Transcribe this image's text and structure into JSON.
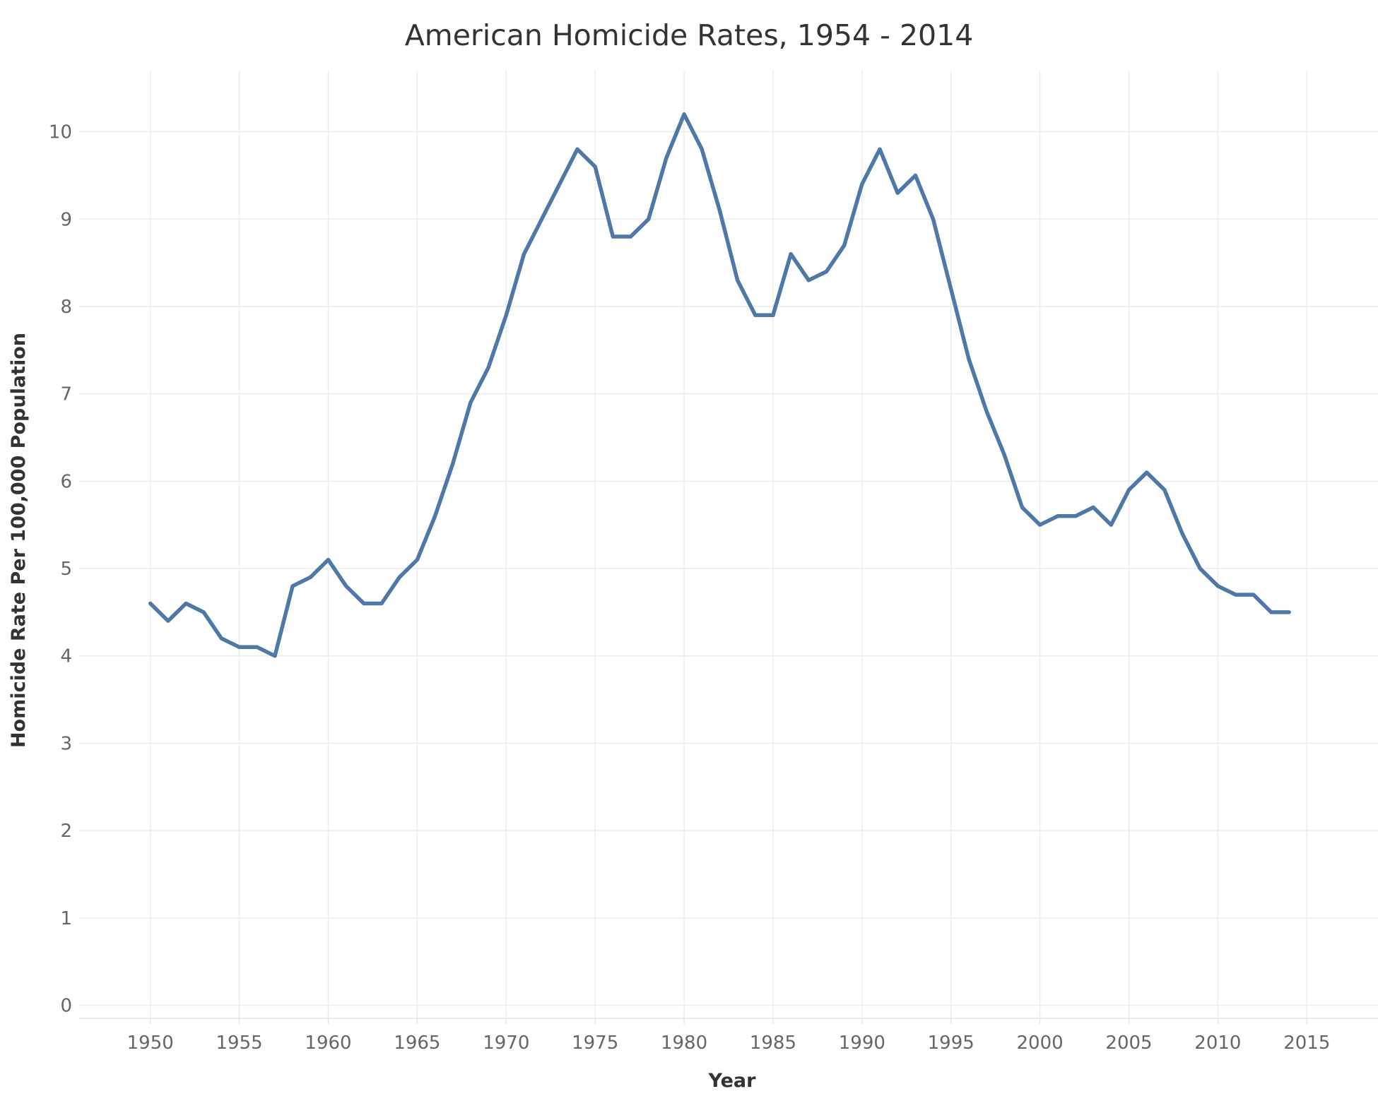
{
  "chart_data": {
    "type": "line",
    "title": "American Homicide Rates, 1954 - 2014",
    "xlabel": "Year",
    "ylabel": "Homicide Rate Per 100,000 Population",
    "xlim": [
      1946,
      2019
    ],
    "ylim": [
      -0.15,
      10.7
    ],
    "xticks": [
      1950,
      1955,
      1960,
      1965,
      1970,
      1975,
      1980,
      1985,
      1990,
      1995,
      2000,
      2005,
      2010,
      2015
    ],
    "yticks": [
      0,
      1,
      2,
      3,
      4,
      5,
      6,
      7,
      8,
      9,
      10
    ],
    "grid": true,
    "line_color": "#4e79a7",
    "series": [
      {
        "x": [
          1950,
          1951,
          1952,
          1953,
          1954,
          1955,
          1956,
          1957,
          1958,
          1959,
          1960,
          1961,
          1962,
          1963,
          1964,
          1965,
          1966,
          1967,
          1968,
          1969,
          1970,
          1971,
          1972,
          1973,
          1974,
          1975,
          1976,
          1977,
          1978,
          1979,
          1980,
          1981,
          1982,
          1983,
          1984,
          1985,
          1986,
          1987,
          1988,
          1989,
          1990,
          1991,
          1992,
          1993,
          1994,
          1995,
          1996,
          1997,
          1998,
          1999,
          2000,
          2001,
          2002,
          2003,
          2004,
          2005,
          2006,
          2007,
          2008,
          2009,
          2010,
          2011,
          2012,
          2013,
          2014
        ],
        "y": [
          4.6,
          4.4,
          4.6,
          4.5,
          4.2,
          4.1,
          4.1,
          4.0,
          4.8,
          4.9,
          5.1,
          4.8,
          4.6,
          4.6,
          4.9,
          5.1,
          5.6,
          6.2,
          6.9,
          7.3,
          7.9,
          8.6,
          9.0,
          9.4,
          9.8,
          9.6,
          8.8,
          8.8,
          9.0,
          9.7,
          10.2,
          9.8,
          9.1,
          8.3,
          7.9,
          7.9,
          8.6,
          8.3,
          8.4,
          8.7,
          9.4,
          9.8,
          9.3,
          9.5,
          9.0,
          8.2,
          7.4,
          6.8,
          6.3,
          5.7,
          5.5,
          5.6,
          5.6,
          5.7,
          5.5,
          5.9,
          6.1,
          5.9,
          5.4,
          5.0,
          4.8,
          4.7,
          4.7,
          4.5,
          4.5
        ]
      }
    ]
  }
}
